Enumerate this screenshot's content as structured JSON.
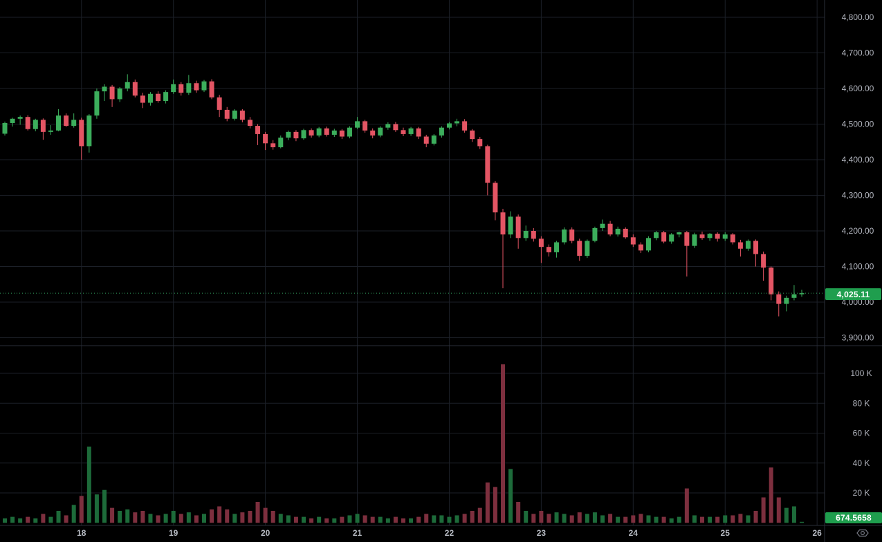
{
  "colors": {
    "background": "#000000",
    "candle_up": "#3cae5c",
    "candle_down": "#e45564",
    "volume_up": "#1d6b3a",
    "volume_down": "#7d2f3e",
    "badge_green": "#1f9e4e",
    "price_line": "#33a360",
    "grid": "#1c2028",
    "separator": "#2a2e39",
    "axis_text": "#b2b5be",
    "icon_gray": "#787b86"
  },
  "price_axis": {
    "tick_labels": [
      "4,800.00",
      "4,700.00",
      "4,600.00",
      "4,500.00",
      "4,400.00",
      "4,300.00",
      "4,200.00",
      "4,100.00",
      "4,000.00",
      "3,900.00"
    ],
    "tick_values": [
      4800,
      4700,
      4600,
      4500,
      4400,
      4300,
      4200,
      4100,
      4000,
      3900
    ]
  },
  "volume_axis": {
    "tick_labels": [
      "100 K",
      "80 K",
      "60 K",
      "40 K",
      "20 K"
    ],
    "tick_values_k": [
      100,
      80,
      60,
      40,
      20
    ]
  },
  "time_axis": {
    "labels": [
      {
        "label": "18",
        "index": 10
      },
      {
        "label": "19",
        "index": 22
      },
      {
        "label": "20",
        "index": 34
      },
      {
        "label": "21",
        "index": 46
      },
      {
        "label": "22",
        "index": 58
      },
      {
        "label": "23",
        "index": 70
      },
      {
        "label": "24",
        "index": 82
      },
      {
        "label": "25",
        "index": 94
      },
      {
        "label": "26",
        "index": 106
      }
    ]
  },
  "badges": {
    "current_price_label": "4,025.11",
    "current_volume_label": "674.5658"
  },
  "chart_data": {
    "type": "candlestick_with_volume",
    "interval_hint": "2h candles, days 18-26 on x-axis",
    "current_price": 4025.11,
    "current_volume": 674.5658,
    "price_range_visible": [
      3900,
      4800
    ],
    "volume_range_visible_k": [
      0,
      110
    ],
    "columns": [
      "open",
      "high",
      "low",
      "close",
      "volume_k"
    ],
    "candles": [
      [
        4473,
        4507,
        4468,
        4503,
        3
      ],
      [
        4503,
        4518,
        4493,
        4515,
        4
      ],
      [
        4515,
        4524,
        4498,
        4520,
        3
      ],
      [
        4520,
        4525,
        4482,
        4486,
        4
      ],
      [
        4486,
        4515,
        4480,
        4512,
        3
      ],
      [
        4512,
        4516,
        4456,
        4478,
        6
      ],
      [
        4478,
        4497,
        4470,
        4482,
        4
      ],
      [
        4482,
        4542,
        4480,
        4524,
        8
      ],
      [
        4524,
        4530,
        4492,
        4495,
        5
      ],
      [
        4495,
        4530,
        4490,
        4512,
        12
      ],
      [
        4512,
        4518,
        4400,
        4438,
        18
      ],
      [
        4438,
        4528,
        4420,
        4524,
        51
      ],
      [
        4524,
        4600,
        4515,
        4592,
        19
      ],
      [
        4592,
        4612,
        4565,
        4605,
        22
      ],
      [
        4605,
        4610,
        4548,
        4570,
        10
      ],
      [
        4570,
        4604,
        4562,
        4600,
        8
      ],
      [
        4600,
        4640,
        4592,
        4618,
        9
      ],
      [
        4618,
        4625,
        4575,
        4580,
        7
      ],
      [
        4580,
        4588,
        4545,
        4560,
        8
      ],
      [
        4560,
        4590,
        4552,
        4585,
        6
      ],
      [
        4585,
        4592,
        4560,
        4565,
        5
      ],
      [
        4565,
        4595,
        4558,
        4590,
        6
      ],
      [
        4590,
        4625,
        4585,
        4612,
        8
      ],
      [
        4612,
        4618,
        4580,
        4588,
        6
      ],
      [
        4588,
        4638,
        4582,
        4615,
        7
      ],
      [
        4615,
        4622,
        4588,
        4595,
        5
      ],
      [
        4595,
        4624,
        4590,
        4620,
        6
      ],
      [
        4620,
        4626,
        4570,
        4575,
        9
      ],
      [
        4575,
        4582,
        4520,
        4540,
        11
      ],
      [
        4540,
        4548,
        4508,
        4515,
        9
      ],
      [
        4515,
        4542,
        4510,
        4538,
        6
      ],
      [
        4538,
        4542,
        4505,
        4512,
        7
      ],
      [
        4512,
        4520,
        4488,
        4495,
        8
      ],
      [
        4495,
        4500,
        4441,
        4472,
        14
      ],
      [
        4472,
        4478,
        4427,
        4446,
        10
      ],
      [
        4446,
        4455,
        4428,
        4435,
        8
      ],
      [
        4435,
        4468,
        4432,
        4462,
        6
      ],
      [
        4462,
        4482,
        4455,
        4478,
        5
      ],
      [
        4478,
        4483,
        4452,
        4460,
        4
      ],
      [
        4460,
        4487,
        4456,
        4483,
        4
      ],
      [
        4483,
        4488,
        4462,
        4468,
        3
      ],
      [
        4468,
        4492,
        4463,
        4488,
        4
      ],
      [
        4488,
        4493,
        4465,
        4470,
        3
      ],
      [
        4470,
        4487,
        4464,
        4482,
        3
      ],
      [
        4482,
        4486,
        4458,
        4465,
        4
      ],
      [
        4465,
        4494,
        4460,
        4490,
        5
      ],
      [
        4490,
        4520,
        4486,
        4508,
        6
      ],
      [
        4508,
        4512,
        4476,
        4482,
        5
      ],
      [
        4482,
        4488,
        4460,
        4468,
        4
      ],
      [
        4468,
        4494,
        4463,
        4490,
        4
      ],
      [
        4490,
        4505,
        4484,
        4500,
        3
      ],
      [
        4500,
        4506,
        4478,
        4483,
        4
      ],
      [
        4483,
        4490,
        4466,
        4472,
        3
      ],
      [
        4472,
        4492,
        4467,
        4488,
        3
      ],
      [
        4488,
        4492,
        4458,
        4465,
        4
      ],
      [
        4465,
        4470,
        4435,
        4445,
        6
      ],
      [
        4445,
        4472,
        4440,
        4468,
        5
      ],
      [
        4468,
        4494,
        4462,
        4490,
        5
      ],
      [
        4490,
        4506,
        4485,
        4502,
        4
      ],
      [
        4502,
        4515,
        4494,
        4508,
        5
      ],
      [
        4508,
        4514,
        4476,
        4482,
        6
      ],
      [
        4482,
        4486,
        4450,
        4458,
        8
      ],
      [
        4458,
        4464,
        4430,
        4438,
        10
      ],
      [
        4438,
        4442,
        4300,
        4335,
        27
      ],
      [
        4335,
        4340,
        4230,
        4252,
        24
      ],
      [
        4252,
        4262,
        4039,
        4190,
        106
      ],
      [
        4190,
        4255,
        4180,
        4240,
        36
      ],
      [
        4240,
        4246,
        4150,
        4180,
        14
      ],
      [
        4180,
        4215,
        4172,
        4200,
        8
      ],
      [
        4200,
        4208,
        4170,
        4178,
        6
      ],
      [
        4178,
        4185,
        4110,
        4155,
        8
      ],
      [
        4155,
        4162,
        4128,
        4140,
        6
      ],
      [
        4140,
        4172,
        4125,
        4168,
        7
      ],
      [
        4168,
        4210,
        4162,
        4204,
        6
      ],
      [
        4204,
        4210,
        4165,
        4172,
        5
      ],
      [
        4172,
        4178,
        4116,
        4130,
        7
      ],
      [
        4130,
        4176,
        4124,
        4172,
        6
      ],
      [
        4172,
        4212,
        4168,
        4208,
        7
      ],
      [
        4208,
        4232,
        4200,
        4220,
        5
      ],
      [
        4220,
        4228,
        4185,
        4190,
        6
      ],
      [
        4190,
        4212,
        4184,
        4206,
        4
      ],
      [
        4206,
        4210,
        4178,
        4182,
        4
      ],
      [
        4182,
        4190,
        4155,
        4162,
        5
      ],
      [
        4162,
        4168,
        4138,
        4145,
        6
      ],
      [
        4145,
        4185,
        4140,
        4180,
        5
      ],
      [
        4180,
        4200,
        4174,
        4196,
        4
      ],
      [
        4196,
        4200,
        4165,
        4170,
        4
      ],
      [
        4170,
        4194,
        4164,
        4190,
        3
      ],
      [
        4190,
        4198,
        4182,
        4196,
        4
      ],
      [
        4196,
        4200,
        4072,
        4158,
        23
      ],
      [
        4158,
        4195,
        4152,
        4190,
        5
      ],
      [
        4190,
        4198,
        4175,
        4180,
        4
      ],
      [
        4180,
        4194,
        4172,
        4192,
        4
      ],
      [
        4192,
        4196,
        4170,
        4178,
        4
      ],
      [
        4178,
        4196,
        4172,
        4190,
        5
      ],
      [
        4190,
        4194,
        4162,
        4168,
        5
      ],
      [
        4168,
        4175,
        4128,
        4150,
        6
      ],
      [
        4150,
        4176,
        4144,
        4172,
        5
      ],
      [
        4172,
        4176,
        4100,
        4135,
        8
      ],
      [
        4135,
        4142,
        4060,
        4097,
        17
      ],
      [
        4097,
        4100,
        4005,
        4022,
        37
      ],
      [
        4022,
        4030,
        3960,
        3995,
        17
      ],
      [
        3995,
        4018,
        3974,
        4012,
        10
      ],
      [
        4012,
        4048,
        4005,
        4022,
        11
      ],
      [
        4022,
        4035,
        4015,
        4025.11,
        0.6746
      ]
    ]
  }
}
